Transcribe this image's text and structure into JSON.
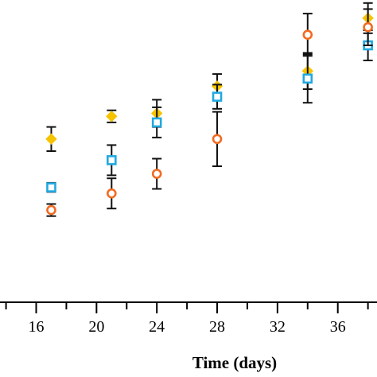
{
  "chart_data": {
    "type": "scatter",
    "xlabel": "Time (days)",
    "ylabel": "",
    "title": "",
    "x_ticks": [
      16,
      20,
      24,
      28,
      32,
      36
    ],
    "xlim": [
      13.6,
      38.6
    ],
    "ylim": [
      0,
      100
    ],
    "legend": "none",
    "grid": false,
    "error_bars": true,
    "colors": {
      "series1": "#f5c300",
      "series2": "#21a9e1",
      "series3": "#f26b21"
    },
    "series": [
      {
        "marker": "diamond",
        "color": "#f5c300",
        "points": [
          {
            "x": 17,
            "y": 54,
            "err": 4
          },
          {
            "x": 21,
            "y": 61.5,
            "err": 2
          },
          {
            "x": 24,
            "y": 62.5,
            "err": 4.5
          },
          {
            "x": 28,
            "y": 71.5,
            "err": 4
          },
          {
            "x": 34,
            "y": 76.5,
            "err": 6
          },
          {
            "x": 38,
            "y": 94,
            "err": 5
          }
        ]
      },
      {
        "marker": "square",
        "color": "#21a9e1",
        "points": [
          {
            "x": 17,
            "y": 38,
            "err": 1.5
          },
          {
            "x": 21,
            "y": 47,
            "err": 5
          },
          {
            "x": 24,
            "y": 59.5,
            "err": 5
          },
          {
            "x": 28,
            "y": 68,
            "err": 4
          },
          {
            "x": 34,
            "y": 74,
            "err": 8
          },
          {
            "x": 38,
            "y": 85,
            "err": 5
          }
        ]
      },
      {
        "marker": "circle",
        "color": "#f26b21",
        "points": [
          {
            "x": 17,
            "y": 30.5,
            "err": 2
          },
          {
            "x": 21,
            "y": 36,
            "err": 5
          },
          {
            "x": 24,
            "y": 42.5,
            "err": 5
          },
          {
            "x": 28,
            "y": 54,
            "err": 9
          },
          {
            "x": 34,
            "y": 88.5,
            "err": 7
          },
          {
            "x": 38,
            "y": 91,
            "err": 6
          }
        ]
      }
    ]
  }
}
